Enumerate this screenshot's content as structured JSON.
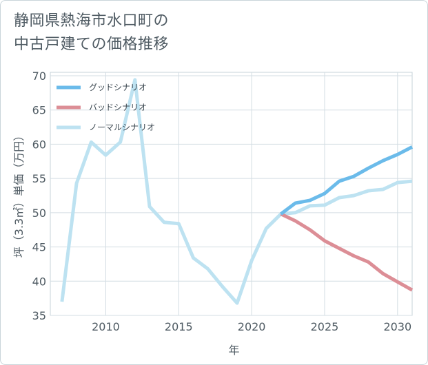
{
  "title_lines": [
    "静岡県熱海市水口町の",
    "中古戸建ての価格推移"
  ],
  "chart_data": {
    "type": "line",
    "xlabel": "年",
    "ylabel": "坪（3.3㎡）単価（万円）",
    "xlim": [
      2006.2,
      2031
    ],
    "ylim": [
      35,
      70.5
    ],
    "xticks": [
      2010,
      2015,
      2020,
      2025,
      2030
    ],
    "yticks": [
      35,
      40,
      45,
      50,
      55,
      60,
      65,
      70
    ],
    "grid": true,
    "legend_position": "top-left",
    "series": [
      {
        "name": "グッドシナリオ",
        "color": "#6bbbea",
        "x": [
          2022,
          2023,
          2024,
          2025,
          2026,
          2027,
          2028,
          2029,
          2030,
          2031
        ],
        "y": [
          49.8,
          51.4,
          51.8,
          52.8,
          54.6,
          55.3,
          56.5,
          57.6,
          58.5,
          59.6
        ]
      },
      {
        "name": "バッドシナリオ",
        "color": "#dc8e96",
        "x": [
          2022,
          2023,
          2024,
          2025,
          2026,
          2027,
          2028,
          2029,
          2030,
          2031
        ],
        "y": [
          49.8,
          48.8,
          47.5,
          45.9,
          44.8,
          43.7,
          42.8,
          41.1,
          39.9,
          38.7
        ]
      },
      {
        "name": "ノーマルシナリオ",
        "color": "#bde2f1",
        "x": [
          2007,
          2008,
          2009,
          2010,
          2011,
          2012,
          2013,
          2014,
          2015,
          2016,
          2017,
          2018,
          2019,
          2020,
          2021,
          2022,
          2023,
          2024,
          2025,
          2026,
          2027,
          2028,
          2029,
          2030,
          2031
        ],
        "y": [
          37.0,
          54.3,
          60.3,
          58.4,
          60.3,
          69.4,
          50.9,
          48.6,
          48.4,
          43.4,
          41.8,
          39.2,
          36.8,
          43.0,
          47.7,
          49.8,
          50.0,
          51.0,
          51.1,
          52.2,
          52.5,
          53.2,
          53.4,
          54.4,
          54.6
        ]
      }
    ]
  }
}
